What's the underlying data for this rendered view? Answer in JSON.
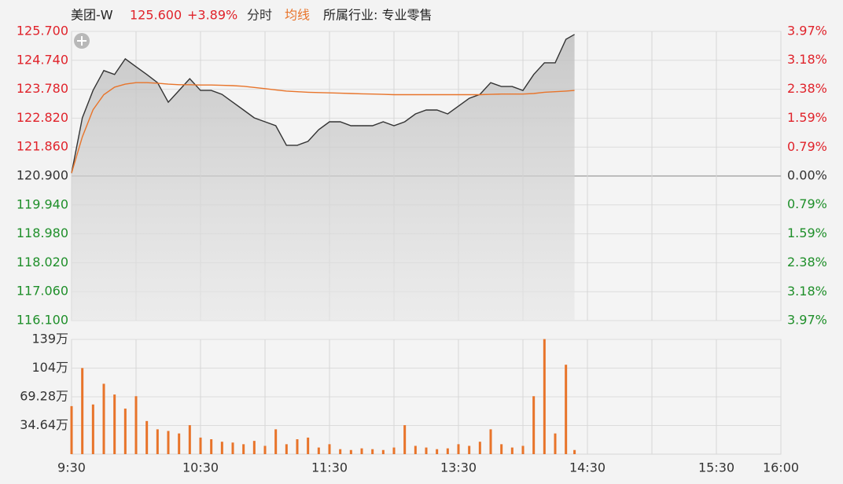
{
  "header": {
    "name": "美团-W",
    "price": "125.600",
    "change": "+3.89%",
    "tab_time": "分时",
    "tab_avg": "均线",
    "industry": "所属行业: 专业零售"
  },
  "chart_data": [
    {
      "type": "line",
      "x": [
        "9:30",
        "9:35",
        "9:40",
        "9:45",
        "9:50",
        "9:55",
        "10:00",
        "10:05",
        "10:10",
        "10:15",
        "10:20",
        "10:25",
        "10:30",
        "10:35",
        "10:40",
        "10:45",
        "10:50",
        "10:55",
        "11:00",
        "11:05",
        "11:10",
        "11:15",
        "11:20",
        "11:25",
        "11:30",
        "11:35",
        "11:40",
        "11:45",
        "11:50",
        "11:55",
        "12:00",
        "13:05",
        "13:10",
        "13:15",
        "13:20",
        "13:25",
        "13:30",
        "13:35",
        "13:40",
        "13:45",
        "13:50",
        "13:55",
        "14:00",
        "14:05",
        "14:10",
        "14:15",
        "14:20",
        "14:24"
      ],
      "series": [
        {
          "color": "#333333",
          "values": [
            121.0,
            122.83,
            123.74,
            124.4,
            124.27,
            124.79,
            124.53,
            124.27,
            124.0,
            123.35,
            123.74,
            124.13,
            123.74,
            123.74,
            123.61,
            123.35,
            123.09,
            122.83,
            122.7,
            122.57,
            121.92,
            121.92,
            122.05,
            122.44,
            122.7,
            122.7,
            122.57,
            122.57,
            122.57,
            122.7,
            122.57,
            122.7,
            122.96,
            123.09,
            123.09,
            122.96,
            123.22,
            123.48,
            123.61,
            124.0,
            123.87,
            123.87,
            123.74,
            124.27,
            124.66,
            124.66,
            125.44,
            125.6
          ]
        },
        {
          "name": "均线",
          "color": "#e8742a",
          "values": [
            121.0,
            122.2,
            123.1,
            123.6,
            123.85,
            123.95,
            124.0,
            124.0,
            123.98,
            123.95,
            123.93,
            123.93,
            123.92,
            123.92,
            123.91,
            123.9,
            123.88,
            123.84,
            123.8,
            123.76,
            123.72,
            123.7,
            123.68,
            123.67,
            123.66,
            123.65,
            123.64,
            123.63,
            123.62,
            123.61,
            123.6,
            123.6,
            123.6,
            123.6,
            123.6,
            123.6,
            123.6,
            123.6,
            123.6,
            123.61,
            123.62,
            123.62,
            123.62,
            123.64,
            123.68,
            123.7,
            123.72,
            123.74
          ]
        }
      ],
      "baseline": 120.9,
      "up_color": "#e0232b",
      "down_color": "#1f8f2a",
      "flat_color": "#333333",
      "ylim": [
        116.1,
        125.7
      ],
      "yticks": [
        {
          "value": 125.7,
          "label": "125.700"
        },
        {
          "value": 124.74,
          "label": "124.740"
        },
        {
          "value": 123.78,
          "label": "123.780"
        },
        {
          "value": 122.82,
          "label": "122.820"
        },
        {
          "value": 121.86,
          "label": "121.860"
        },
        {
          "value": 120.9,
          "label": "120.900"
        },
        {
          "value": 119.94,
          "label": "119.940"
        },
        {
          "value": 118.98,
          "label": "118.980"
        },
        {
          "value": 118.02,
          "label": "118.020"
        },
        {
          "value": 117.06,
          "label": "117.060"
        },
        {
          "value": 116.1,
          "label": "116.100"
        }
      ],
      "y2lim": [
        -3.97,
        3.97
      ],
      "y2ticks": [
        {
          "value": 3.97,
          "label": "3.97%"
        },
        {
          "value": 3.18,
          "label": "3.18%"
        },
        {
          "value": 2.38,
          "label": "2.38%"
        },
        {
          "value": 1.59,
          "label": "1.59%"
        },
        {
          "value": 0.79,
          "label": "0.79%"
        },
        {
          "value": 0,
          "label": "0.00%"
        },
        {
          "value": -0.79,
          "label": "0.79%"
        },
        {
          "value": -1.59,
          "label": "1.59%"
        },
        {
          "value": -2.38,
          "label": "2.38%"
        },
        {
          "value": -3.18,
          "label": "3.18%"
        },
        {
          "value": -3.97,
          "label": "3.97%"
        }
      ]
    },
    {
      "type": "bar",
      "x": [
        "9:30",
        "9:35",
        "9:40",
        "9:45",
        "9:50",
        "9:55",
        "10:00",
        "10:05",
        "10:10",
        "10:15",
        "10:20",
        "10:25",
        "10:30",
        "10:35",
        "10:40",
        "10:45",
        "10:50",
        "10:55",
        "11:00",
        "11:05",
        "11:10",
        "11:15",
        "11:20",
        "11:25",
        "11:30",
        "11:35",
        "11:40",
        "11:45",
        "11:50",
        "11:55",
        "12:00",
        "13:05",
        "13:10",
        "13:15",
        "13:20",
        "13:25",
        "13:30",
        "13:35",
        "13:40",
        "13:45",
        "13:50",
        "13:55",
        "14:00",
        "14:05",
        "14:10",
        "14:15",
        "14:20",
        "14:24"
      ],
      "values": [
        58,
        104,
        60,
        85,
        72,
        55,
        70,
        40,
        30,
        28,
        25,
        35,
        20,
        18,
        15,
        14,
        12,
        16,
        10,
        30,
        12,
        18,
        20,
        8,
        12,
        6,
        5,
        7,
        6,
        5,
        8,
        35,
        10,
        8,
        6,
        7,
        12,
        10,
        15,
        30,
        12,
        8,
        10,
        70,
        139,
        25,
        108,
        5
      ],
      "color": "#e8742a",
      "ylim": [
        0,
        138.56
      ],
      "yticks": [
        {
          "value": 34.64,
          "label": "34.64万"
        },
        {
          "value": 69.28,
          "label": "69.28万"
        },
        {
          "value": 103.92,
          "label": "104万"
        },
        {
          "value": 138.56,
          "label": "139万"
        }
      ],
      "xticks": [
        "9:30",
        "10:30",
        "11:30",
        "13:30",
        "14:30",
        "15:30",
        "16:00"
      ],
      "grid_times": [
        "10:00",
        "10:30",
        "11:00",
        "11:30",
        "12:00",
        "13:30",
        "14:00",
        "14:30",
        "15:00",
        "15:30"
      ]
    }
  ]
}
